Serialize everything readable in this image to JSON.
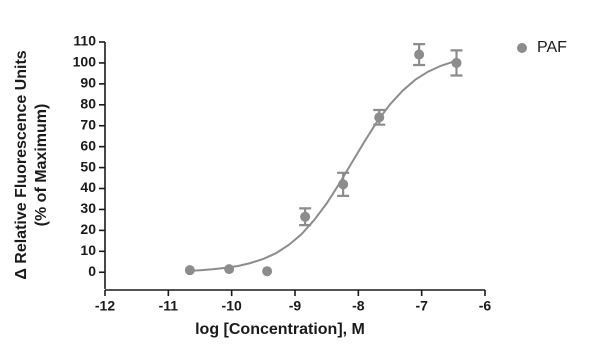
{
  "chart_data": {
    "type": "scatter",
    "xlabel": "log [Concentration], M",
    "ylabel": [
      "Δ Relative Fluorescence Units",
      "(% of Maximum)"
    ],
    "series": [
      {
        "name": "PAF",
        "color": "#8c8c8c",
        "x": [
          -10.66,
          -10.04,
          -9.44,
          -8.84,
          -8.24,
          -7.67,
          -7.04,
          -6.45
        ],
        "values": [
          1,
          1.5,
          0.5,
          26.5,
          42,
          74,
          104,
          100
        ],
        "errors": [
          0,
          0,
          0,
          4,
          5.5,
          3.5,
          5,
          6
        ]
      }
    ],
    "curve": {
      "color": "#8c8c8c",
      "x": [
        -10.7,
        -10.5,
        -10.3,
        -10.1,
        -9.9,
        -9.7,
        -9.5,
        -9.3,
        -9.1,
        -8.9,
        -8.7,
        -8.5,
        -8.3,
        -8.1,
        -7.9,
        -7.7,
        -7.5,
        -7.3,
        -7.1,
        -6.9,
        -6.7,
        -6.5,
        -6.4
      ],
      "values": [
        0.6,
        1,
        1.4,
        2.1,
        3,
        4.4,
        6.4,
        9.1,
        13,
        18.1,
        24.8,
        32.9,
        42.3,
        52.5,
        62.6,
        72.1,
        80.2,
        86.8,
        92,
        95.8,
        98.6,
        100.6,
        101.4
      ]
    },
    "xlim": [
      -12,
      -6
    ],
    "xticks": [
      -12,
      -11,
      -10,
      -9,
      -8,
      -7,
      -6
    ],
    "ylim": [
      -8,
      110
    ],
    "yticks": [
      0,
      10,
      20,
      30,
      40,
      50,
      60,
      70,
      80,
      90,
      100,
      110
    ],
    "legend": "top-right"
  }
}
